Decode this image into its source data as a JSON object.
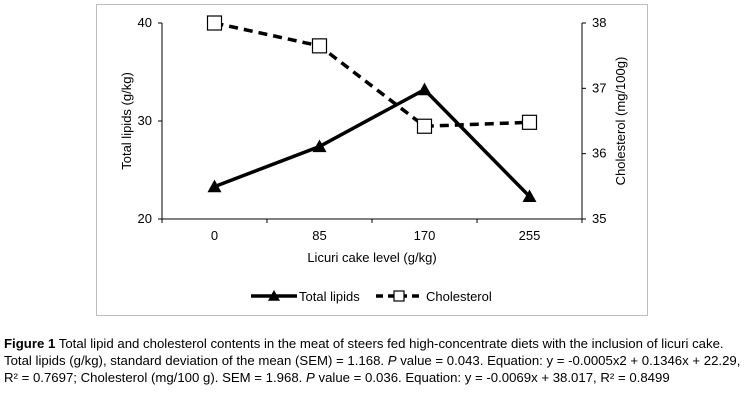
{
  "chart_data": {
    "type": "line",
    "categories": [
      "0",
      "85",
      "170",
      "255"
    ],
    "xlabel": "Licuri cake level (g/kg)",
    "ylabel_left": "Total lipids (g/kg)",
    "ylabel_right": "Cholesterol (mg/100g)",
    "ylim_left": [
      20,
      40
    ],
    "yticks_left": [
      "20",
      "30",
      "40"
    ],
    "ylim_right": [
      35,
      38
    ],
    "yticks_right": [
      "35",
      "36",
      "37",
      "38"
    ],
    "grid": false,
    "legend_position": "bottom",
    "series": [
      {
        "name": "Total lipids",
        "axis": "left",
        "values": [
          23.3,
          27.4,
          33.2,
          22.3
        ],
        "style": "solid",
        "marker": "triangle",
        "color": "#000000"
      },
      {
        "name": "Cholesterol",
        "axis": "right",
        "values": [
          38.0,
          37.65,
          36.42,
          36.48
        ],
        "style": "dashed",
        "marker": "square",
        "color": "#000000"
      }
    ]
  },
  "caption": {
    "label": "Figure 1",
    "text_a": " Total lipid and cholesterol contents in the meat of steers fed high-concentrate diets with the inclusion of licuri cake. Total lipids (g/kg), standard deviation of the mean (SEM) = 1.168. ",
    "p_label_1": "P",
    "text_b": " value = 0.043. Equation: y = -0.0005x2 + 0.1346x + 22.29, R² = 0.7697; Cholesterol (mg/100 g). SEM = 1.968. ",
    "p_label_2": "P",
    "text_c": " value = 0.036. Equation: y = -0.0069x + 38.017, R² = 0.8499"
  }
}
